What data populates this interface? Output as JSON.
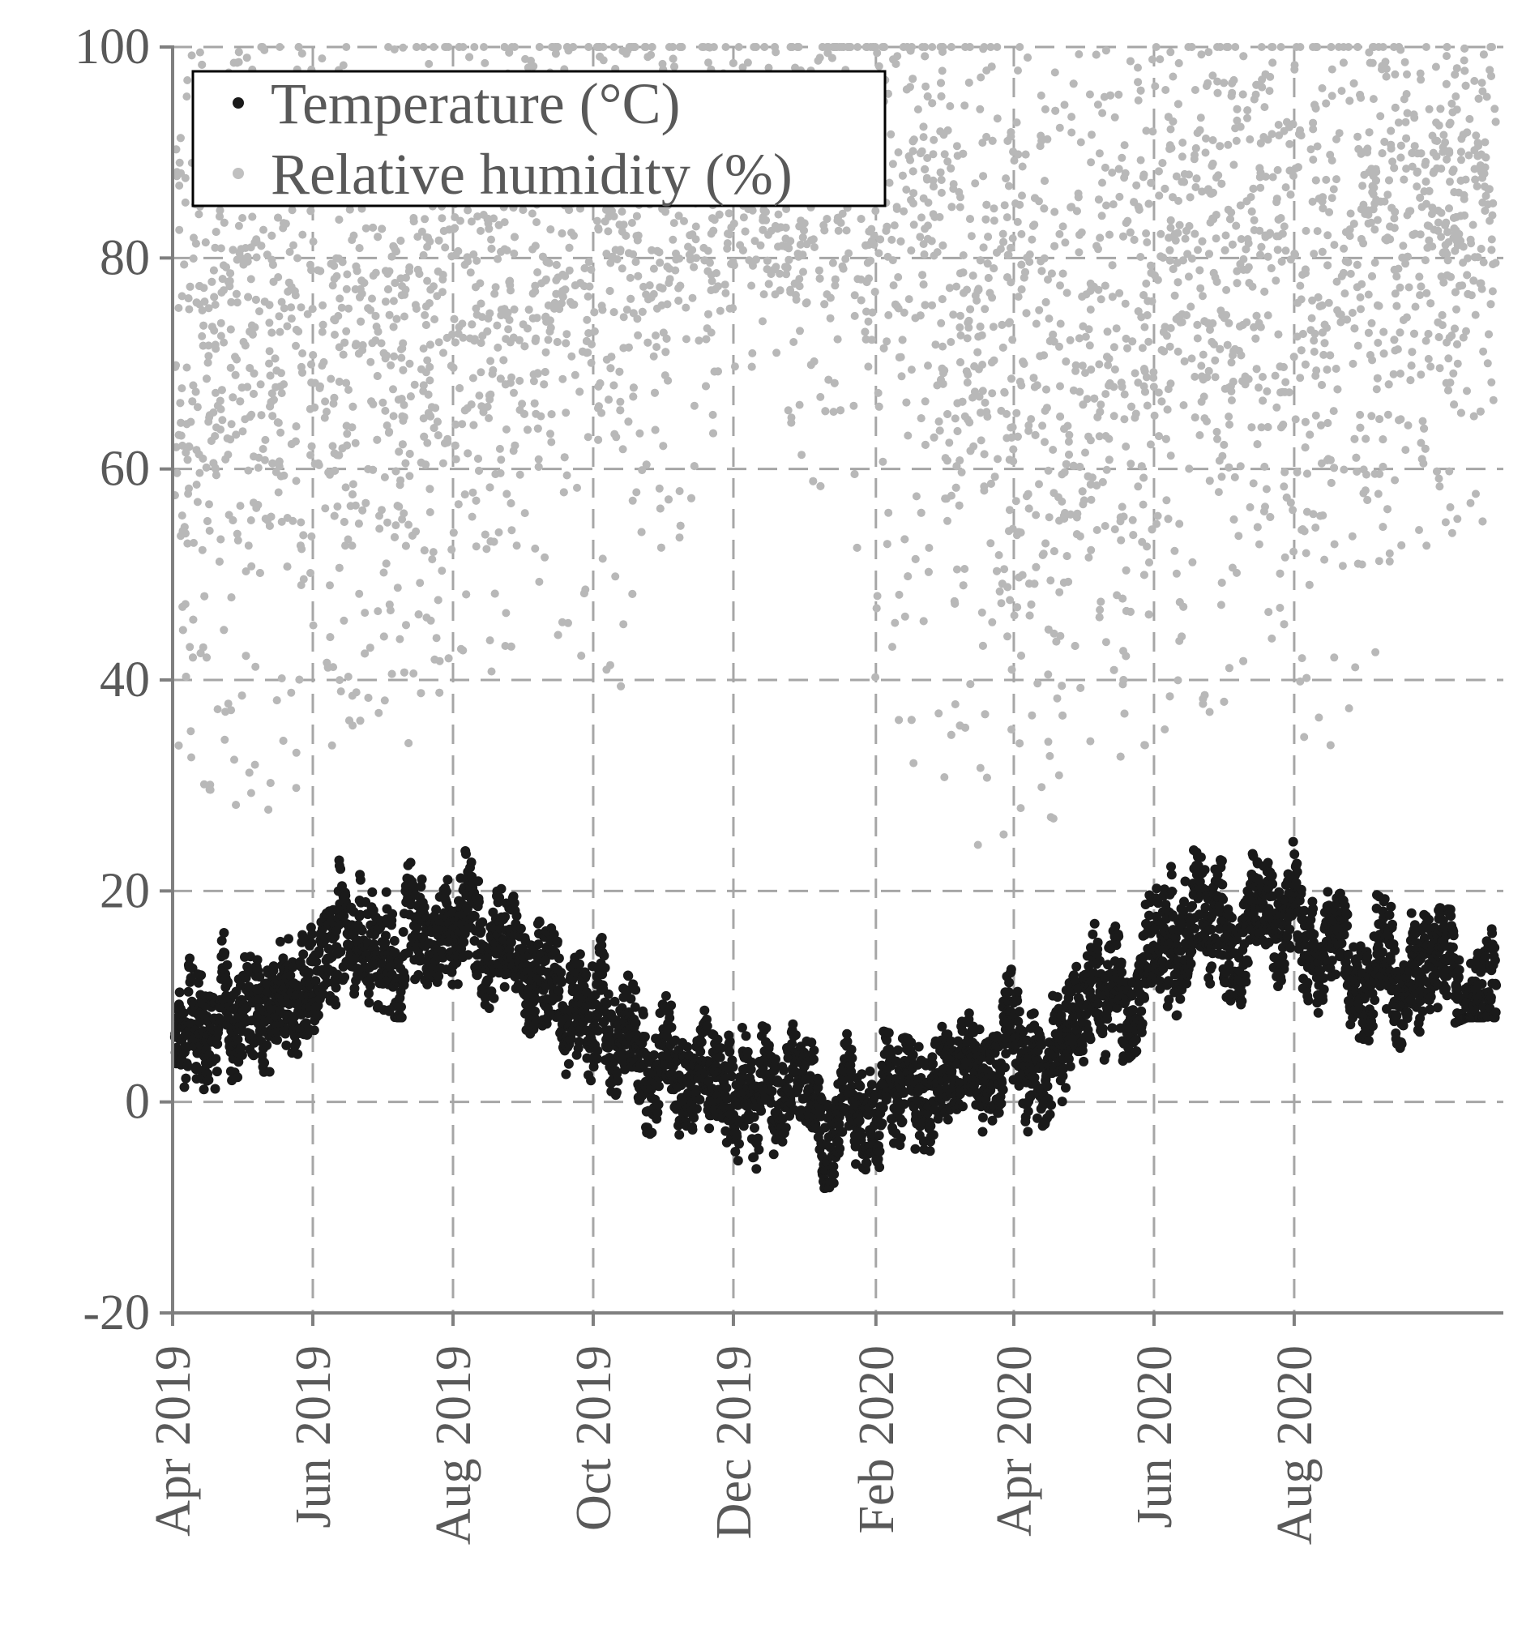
{
  "chart_data": {
    "type": "scatter",
    "title": "",
    "xlabel": "",
    "ylabel": "",
    "x_type": "date",
    "xlim": [
      "2019-04-01",
      "2020-10-31"
    ],
    "ylim": [
      -20,
      100
    ],
    "grid": true,
    "grid_style": "dashed",
    "legend_position": "top-left",
    "x_ticks": [
      {
        "date": "2019-04-01",
        "label": "Apr 2019"
      },
      {
        "date": "2019-06-01",
        "label": "Jun 2019"
      },
      {
        "date": "2019-08-01",
        "label": "Aug 2019"
      },
      {
        "date": "2019-10-01",
        "label": "Oct 2019"
      },
      {
        "date": "2019-12-01",
        "label": "Dec 2019"
      },
      {
        "date": "2020-02-01",
        "label": "Feb 2020"
      },
      {
        "date": "2020-04-01",
        "label": "Apr 2020"
      },
      {
        "date": "2020-06-01",
        "label": "Jun 2020"
      },
      {
        "date": "2020-08-01",
        "label": "Aug 2020"
      }
    ],
    "y_ticks": [
      {
        "value": 100,
        "label": "100"
      },
      {
        "value": 80,
        "label": "80"
      },
      {
        "value": 60,
        "label": "60"
      },
      {
        "value": 40,
        "label": "40"
      },
      {
        "value": 20,
        "label": "20"
      },
      {
        "value": 0,
        "label": "0"
      },
      {
        "value": -20,
        "label": "-20"
      }
    ],
    "series": [
      {
        "name": "Temperature (°C)",
        "color": "#1a1a1a",
        "monthly": [
          {
            "date": "2019-04-15",
            "mean": 5,
            "low": -6,
            "high": 19
          },
          {
            "date": "2019-05-15",
            "mean": 10,
            "low": 0,
            "high": 24
          },
          {
            "date": "2019-06-15",
            "mean": 16,
            "low": 8,
            "high": 26
          },
          {
            "date": "2019-07-15",
            "mean": 17,
            "low": 8,
            "high": 32
          },
          {
            "date": "2019-08-15",
            "mean": 16,
            "low": 7,
            "high": 24
          },
          {
            "date": "2019-09-15",
            "mean": 11,
            "low": 2,
            "high": 22
          },
          {
            "date": "2019-10-15",
            "mean": 5,
            "low": -2,
            "high": 15
          },
          {
            "date": "2019-11-15",
            "mean": 3,
            "low": -5,
            "high": 11
          },
          {
            "date": "2019-12-15",
            "mean": 2,
            "low": -9,
            "high": 7
          },
          {
            "date": "2020-01-15",
            "mean": 1,
            "low": -8,
            "high": 8
          },
          {
            "date": "2020-02-15",
            "mean": 0,
            "low": -10,
            "high": 6
          },
          {
            "date": "2020-03-15",
            "mean": 2,
            "low": -8,
            "high": 10
          },
          {
            "date": "2020-04-15",
            "mean": 5,
            "low": -2,
            "high": 15
          },
          {
            "date": "2020-05-15",
            "mean": 12,
            "low": 3,
            "high": 22
          },
          {
            "date": "2020-06-15",
            "mean": 17,
            "low": 9,
            "high": 29
          },
          {
            "date": "2020-07-15",
            "mean": 17,
            "low": 9,
            "high": 27
          },
          {
            "date": "2020-08-15",
            "mean": 16,
            "low": 7,
            "high": 26
          },
          {
            "date": "2020-09-15",
            "mean": 13,
            "low": 5,
            "high": 19
          },
          {
            "date": "2020-10-15",
            "mean": 12,
            "low": 8,
            "high": 18
          }
        ]
      },
      {
        "name": "Relative humidity (%)",
        "color": "#b8b8b8",
        "monthly": [
          {
            "date": "2019-04-15",
            "mean": 72,
            "low": 26,
            "high": 100
          },
          {
            "date": "2019-05-15",
            "mean": 75,
            "low": 27,
            "high": 100
          },
          {
            "date": "2019-06-15",
            "mean": 72,
            "low": 35,
            "high": 100
          },
          {
            "date": "2019-07-15",
            "mean": 72,
            "low": 33,
            "high": 100
          },
          {
            "date": "2019-08-15",
            "mean": 78,
            "low": 40,
            "high": 100
          },
          {
            "date": "2019-09-15",
            "mean": 82,
            "low": 44,
            "high": 100
          },
          {
            "date": "2019-10-15",
            "mean": 86,
            "low": 38,
            "high": 100
          },
          {
            "date": "2019-11-15",
            "mean": 88,
            "low": 58,
            "high": 100
          },
          {
            "date": "2019-12-15",
            "mean": 90,
            "low": 72,
            "high": 100
          },
          {
            "date": "2020-01-15",
            "mean": 88,
            "low": 50,
            "high": 100
          },
          {
            "date": "2020-02-15",
            "mean": 87,
            "low": 31,
            "high": 100
          },
          {
            "date": "2020-03-15",
            "mean": 75,
            "low": 23,
            "high": 100
          },
          {
            "date": "2020-04-15",
            "mean": 68,
            "low": 25,
            "high": 100
          },
          {
            "date": "2020-05-15",
            "mean": 70,
            "low": 27,
            "high": 100
          },
          {
            "date": "2020-06-15",
            "mean": 78,
            "low": 35,
            "high": 100
          },
          {
            "date": "2020-07-15",
            "mean": 80,
            "low": 40,
            "high": 100
          },
          {
            "date": "2020-08-15",
            "mean": 82,
            "low": 30,
            "high": 100
          },
          {
            "date": "2020-09-15",
            "mean": 84,
            "low": 48,
            "high": 100
          },
          {
            "date": "2020-10-15",
            "mean": 85,
            "low": 55,
            "high": 100
          }
        ]
      }
    ]
  }
}
